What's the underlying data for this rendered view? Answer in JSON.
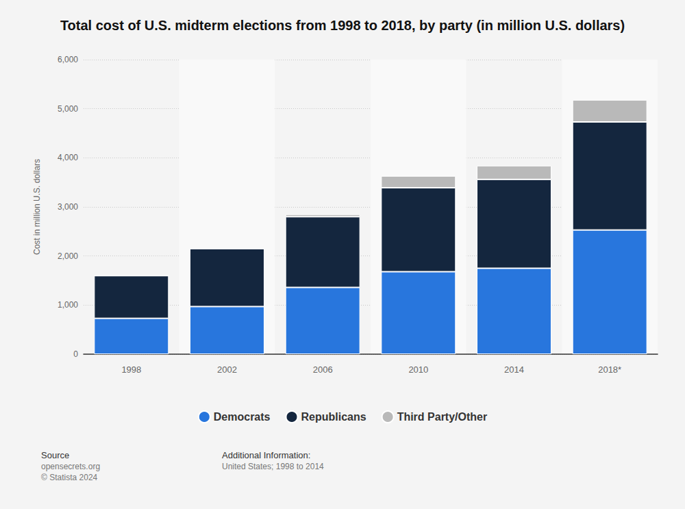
{
  "chart_data": {
    "type": "bar",
    "title": "Total cost of U.S. midterm elections from 1998 to 2018, by party (in million U.S. dollars)",
    "y_label": "Cost in million U.S. dollars",
    "categories": [
      "1998",
      "2002",
      "2006",
      "2010",
      "2014",
      "2018*"
    ],
    "series": [
      {
        "name": "Democrats",
        "color": "#2876dd",
        "values": [
          730,
          970,
          1360,
          1680,
          1750,
          2530
        ]
      },
      {
        "name": "Republicans",
        "color": "#14263e",
        "values": [
          870,
          1180,
          1440,
          1710,
          1810,
          2200
        ]
      },
      {
        "name": "Third Party/Other",
        "color": "#b9b9b9",
        "values": [
          0,
          0,
          50,
          240,
          280,
          450
        ]
      }
    ],
    "ylim": [
      0,
      6000
    ],
    "yticks": [
      0,
      {
        "value": 1000,
        "label": "1,000"
      },
      {
        "value": 2000,
        "label": "2,000"
      },
      {
        "value": 3000,
        "label": "3,000"
      },
      {
        "value": 4000,
        "label": "4,000"
      },
      {
        "value": 5000,
        "label": "5,000"
      },
      {
        "value": 6000,
        "label": "6,000"
      }
    ],
    "stacked": true,
    "grid": true,
    "legend": "bottom",
    "source_label": "Source",
    "source": "opensecrets.org",
    "copyright": "© Statista 2024",
    "info_label": "Additional Information:",
    "info": "United States; 1998 to 2014"
  }
}
